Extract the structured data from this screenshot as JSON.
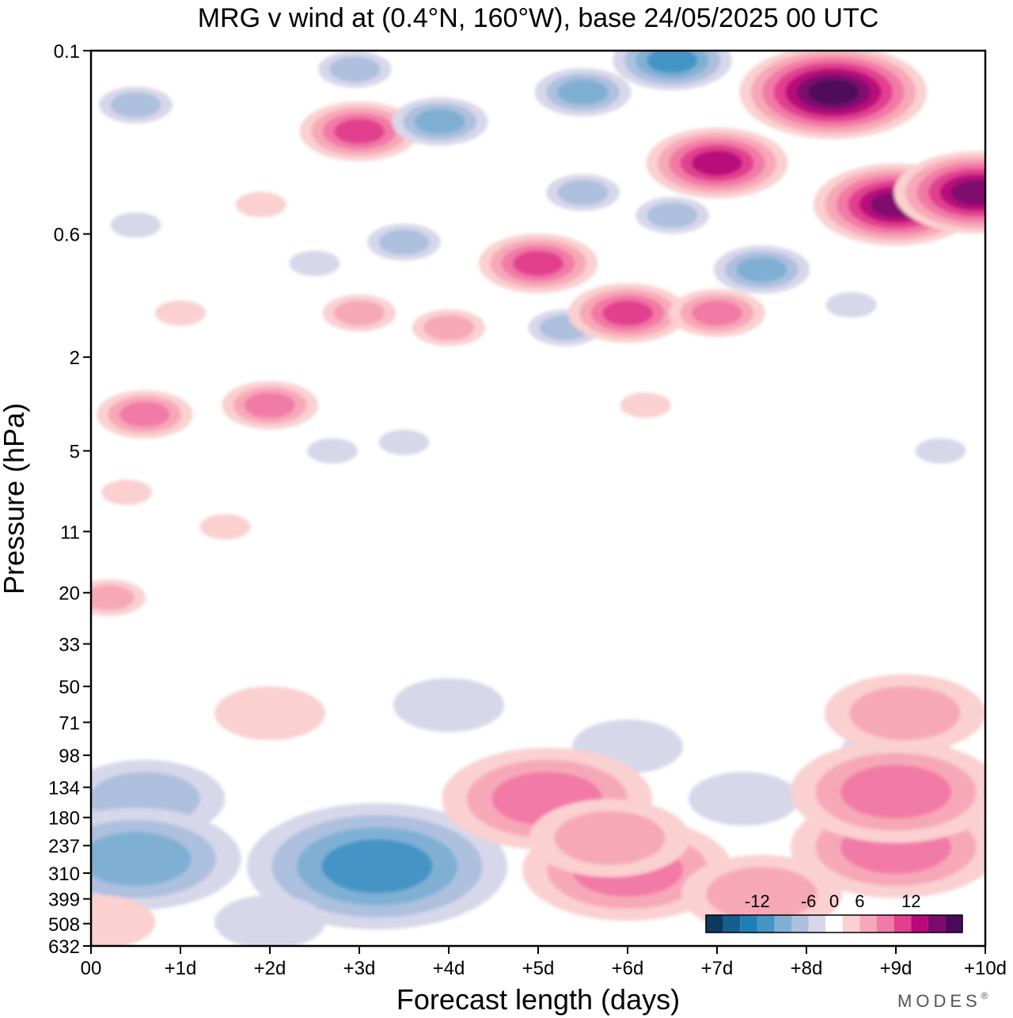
{
  "chart_data": {
    "type": "heatmap",
    "title": "MRG v wind at (0.4°N, 160°W),  base 24/05/2025  00 UTC",
    "xlabel": "Forecast length (days)",
    "ylabel": "Pressure (hPa)",
    "x_ticks": [
      "00",
      "+1d",
      "+2d",
      "+3d",
      "+4d",
      "+5d",
      "+6d",
      "+7d",
      "+8d",
      "+9d",
      "+10d"
    ],
    "y_ticks": [
      "0.1",
      "0.6",
      "2",
      "5",
      "11",
      "20",
      "33",
      "50",
      "71",
      "98",
      "134",
      "180",
      "237",
      "310",
      "399",
      "508",
      "632"
    ],
    "colorbar": {
      "tick_labels": [
        "-12",
        "-6",
        "0",
        "6",
        "12"
      ],
      "tick_values": [
        -12,
        -6,
        0,
        6,
        12
      ],
      "levels": [
        -16,
        -14,
        -12,
        -10,
        -8,
        -6,
        -4,
        -2,
        2,
        4,
        6,
        8,
        10,
        12,
        14,
        16
      ],
      "colors": [
        "#0d3a5c",
        "#155f8f",
        "#1e7fb8",
        "#4594c6",
        "#7fb0d4",
        "#adc0de",
        "#d7d7ea",
        "#ffffff",
        "#fad0d0",
        "#f7a8b8",
        "#f27aa6",
        "#e23f8f",
        "#b8087a",
        "#7f0a6e",
        "#4e085c"
      ]
    },
    "features": [
      {
        "kind": "neg",
        "strength": 2,
        "t": 0.5,
        "p": 0.17
      },
      {
        "kind": "neg",
        "strength": 1,
        "t": 0.5,
        "p": 0.55
      },
      {
        "kind": "pos",
        "strength": 1,
        "t": 1.0,
        "p": 1.3
      },
      {
        "kind": "pos",
        "strength": 3,
        "t": 0.6,
        "p": 3.5
      },
      {
        "kind": "pos",
        "strength": 1,
        "t": 0.4,
        "p": 7.5
      },
      {
        "kind": "pos",
        "strength": 1,
        "t": 1.5,
        "p": 10.5
      },
      {
        "kind": "pos",
        "strength": 2,
        "t": 0.2,
        "p": 21
      },
      {
        "kind": "pos",
        "strength": 3,
        "t": 2.0,
        "p": 3.2
      },
      {
        "kind": "pos",
        "strength": 1,
        "t": 1.9,
        "p": 0.45
      },
      {
        "kind": "neg",
        "strength": 1,
        "t": 2.5,
        "p": 0.8
      },
      {
        "kind": "neg",
        "strength": 1,
        "t": 2.7,
        "p": 5.0
      },
      {
        "kind": "neg",
        "strength": 2,
        "t": 2.95,
        "p": 0.12
      },
      {
        "kind": "pos",
        "strength": 4,
        "t": 3.0,
        "p": 0.22
      },
      {
        "kind": "pos",
        "strength": 2,
        "t": 3.0,
        "p": 1.3
      },
      {
        "kind": "neg",
        "strength": 2,
        "t": 3.5,
        "p": 0.65
      },
      {
        "kind": "neg",
        "strength": 1,
        "t": 3.5,
        "p": 4.6
      },
      {
        "kind": "neg",
        "strength": 3,
        "t": 3.9,
        "p": 0.2
      },
      {
        "kind": "pos",
        "strength": 2,
        "t": 4.0,
        "p": 1.5
      },
      {
        "kind": "pos",
        "strength": 4,
        "t": 5.0,
        "p": 0.8
      },
      {
        "kind": "neg",
        "strength": 2,
        "t": 5.3,
        "p": 1.5
      },
      {
        "kind": "neg",
        "strength": 3,
        "t": 5.5,
        "p": 0.15
      },
      {
        "kind": "neg",
        "strength": 2,
        "t": 5.5,
        "p": 0.4
      },
      {
        "kind": "pos",
        "strength": 4,
        "t": 6.0,
        "p": 1.3
      },
      {
        "kind": "pos",
        "strength": 1,
        "t": 6.2,
        "p": 3.2
      },
      {
        "kind": "neg",
        "strength": 4,
        "t": 6.5,
        "p": 0.11
      },
      {
        "kind": "neg",
        "strength": 2,
        "t": 6.5,
        "p": 0.5
      },
      {
        "kind": "pos",
        "strength": 5,
        "t": 7.0,
        "p": 0.3
      },
      {
        "kind": "pos",
        "strength": 3,
        "t": 7.0,
        "p": 1.3
      },
      {
        "kind": "neg",
        "strength": 3,
        "t": 7.5,
        "p": 0.85
      },
      {
        "kind": "pos",
        "strength": 7,
        "t": 8.3,
        "p": 0.15
      },
      {
        "kind": "pos",
        "strength": 6,
        "t": 9.0,
        "p": 0.45
      },
      {
        "kind": "pos",
        "strength": 6,
        "t": 9.9,
        "p": 0.4
      },
      {
        "kind": "neg",
        "strength": 1,
        "t": 8.5,
        "p": 1.2
      },
      {
        "kind": "neg",
        "strength": 1,
        "t": 9.5,
        "p": 5.0
      },
      {
        "kind": "neg",
        "strength": 2,
        "t": 0.6,
        "p": 150
      },
      {
        "kind": "neg",
        "strength": 3,
        "t": 0.5,
        "p": 270
      },
      {
        "kind": "neg",
        "strength": 4,
        "t": 3.2,
        "p": 290
      },
      {
        "kind": "neg",
        "strength": 1,
        "t": 2.0,
        "p": 500
      },
      {
        "kind": "neg",
        "strength": 1,
        "t": 4.0,
        "p": 60
      },
      {
        "kind": "neg",
        "strength": 1,
        "t": 6.0,
        "p": 90
      },
      {
        "kind": "neg",
        "strength": 1,
        "t": 7.3,
        "p": 150
      },
      {
        "kind": "neg",
        "strength": 1,
        "t": 9.0,
        "p": 95
      },
      {
        "kind": "pos",
        "strength": 3,
        "t": 5.1,
        "p": 150
      },
      {
        "kind": "pos",
        "strength": 3,
        "t": 6.0,
        "p": 300
      },
      {
        "kind": "pos",
        "strength": 2,
        "t": 5.8,
        "p": 220
      },
      {
        "kind": "pos",
        "strength": 2,
        "t": 7.5,
        "p": 380
      },
      {
        "kind": "pos",
        "strength": 3,
        "t": 9.0,
        "p": 240
      },
      {
        "kind": "pos",
        "strength": 3,
        "t": 9.0,
        "p": 140
      },
      {
        "kind": "pos",
        "strength": 2,
        "t": 9.1,
        "p": 65
      },
      {
        "kind": "pos",
        "strength": 1,
        "t": 2.0,
        "p": 65
      },
      {
        "kind": "pos",
        "strength": 1,
        "t": 0.1,
        "p": 500
      }
    ]
  },
  "brand": "MODES",
  "brand_mark": "®"
}
